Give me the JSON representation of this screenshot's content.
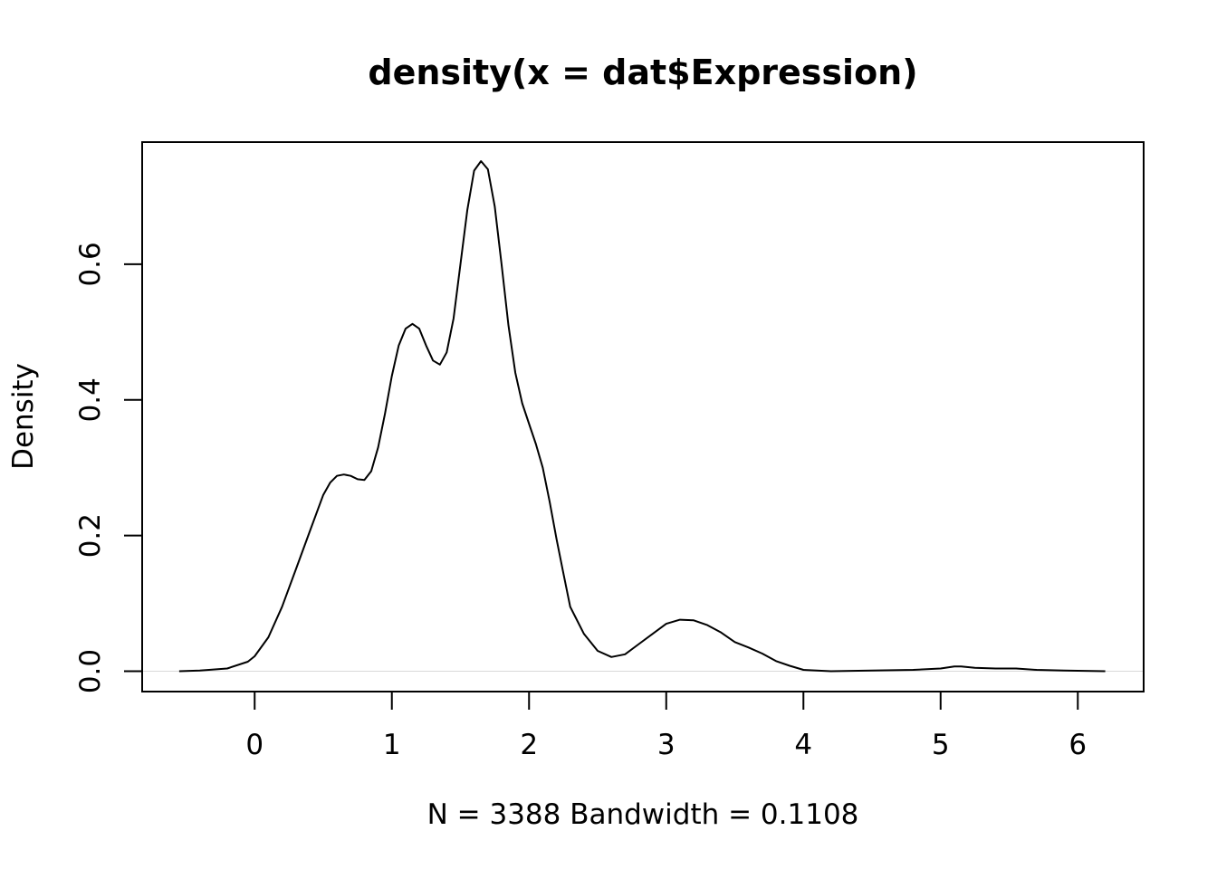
{
  "chart_data": {
    "type": "line",
    "title": "density(x = dat$Expression)",
    "xlabel": "N = 3388   Bandwidth = 0.1108",
    "ylabel": "Density",
    "xlim": [
      -0.82,
      6.48
    ],
    "ylim": [
      -0.03,
      0.78
    ],
    "x_ticks": [
      "0",
      "1",
      "2",
      "3",
      "4",
      "5",
      "6"
    ],
    "y_ticks": [
      "0.0",
      "0.2",
      "0.4",
      "0.6"
    ],
    "baseline": 0,
    "grid": false,
    "legend": "none",
    "colors": {
      "line": "#000000",
      "baseline": "#d9d9d9",
      "box": "#000000"
    },
    "series": [
      {
        "x": [
          -0.55,
          -0.4,
          -0.2,
          -0.05,
          0.0,
          0.1,
          0.2,
          0.3,
          0.4,
          0.5,
          0.55,
          0.6,
          0.65,
          0.7,
          0.75,
          0.8,
          0.85,
          0.9,
          0.95,
          1.0,
          1.05,
          1.1,
          1.15,
          1.2,
          1.25,
          1.3,
          1.35,
          1.4,
          1.45,
          1.5,
          1.55,
          1.6,
          1.65,
          1.7,
          1.75,
          1.8,
          1.85,
          1.9,
          1.95,
          2.0,
          2.05,
          2.1,
          2.15,
          2.2,
          2.25,
          2.3,
          2.4,
          2.5,
          2.6,
          2.7,
          2.8,
          2.9,
          3.0,
          3.1,
          3.2,
          3.3,
          3.4,
          3.5,
          3.6,
          3.7,
          3.8,
          3.9,
          4.0,
          4.2,
          4.5,
          4.8,
          5.0,
          5.1,
          5.15,
          5.25,
          5.4,
          5.55,
          5.7,
          5.9,
          6.2
        ],
        "y": [
          0.0,
          0.001,
          0.004,
          0.014,
          0.022,
          0.05,
          0.095,
          0.15,
          0.205,
          0.26,
          0.278,
          0.288,
          0.29,
          0.288,
          0.283,
          0.282,
          0.295,
          0.33,
          0.38,
          0.435,
          0.48,
          0.505,
          0.512,
          0.505,
          0.48,
          0.458,
          0.452,
          0.47,
          0.52,
          0.6,
          0.68,
          0.738,
          0.752,
          0.74,
          0.685,
          0.6,
          0.51,
          0.44,
          0.395,
          0.365,
          0.335,
          0.3,
          0.25,
          0.195,
          0.145,
          0.095,
          0.055,
          0.03,
          0.021,
          0.025,
          0.04,
          0.055,
          0.07,
          0.076,
          0.075,
          0.068,
          0.057,
          0.043,
          0.035,
          0.026,
          0.015,
          0.008,
          0.002,
          0.0,
          0.001,
          0.002,
          0.004,
          0.007,
          0.007,
          0.005,
          0.004,
          0.004,
          0.002,
          0.001,
          0.0
        ]
      }
    ]
  }
}
